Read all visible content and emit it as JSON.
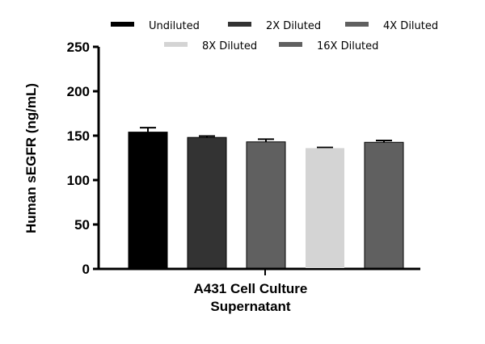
{
  "chart_data": {
    "type": "bar",
    "title": "",
    "xlabel": "A431 Cell Culture Supernatant",
    "xlabel_lines": [
      "A431 Cell Culture",
      "Supernatant"
    ],
    "ylabel": "Human sEGFR (ng/mL)",
    "ylim": [
      0,
      250
    ],
    "yticks": [
      0,
      50,
      100,
      150,
      200,
      250
    ],
    "grid": false,
    "legend_placement": "top",
    "categories": [
      "A431 Cell Culture Supernatant"
    ],
    "series": [
      {
        "name": "Undiluted",
        "values": [
          154
        ],
        "error": [
          5
        ],
        "color": "#000000"
      },
      {
        "name": "2X Diluted",
        "values": [
          148
        ],
        "error": [
          1.5
        ],
        "color": "#333333"
      },
      {
        "name": "4X Diluted",
        "values": [
          143
        ],
        "error": [
          3
        ],
        "color": "#606060"
      },
      {
        "name": "8X Diluted",
        "values": [
          136
        ],
        "error": [
          0.7
        ],
        "color": "#d4d4d4"
      },
      {
        "name": "16X Diluted",
        "values": [
          142.5
        ],
        "error": [
          2
        ],
        "color": "#606060"
      }
    ]
  }
}
